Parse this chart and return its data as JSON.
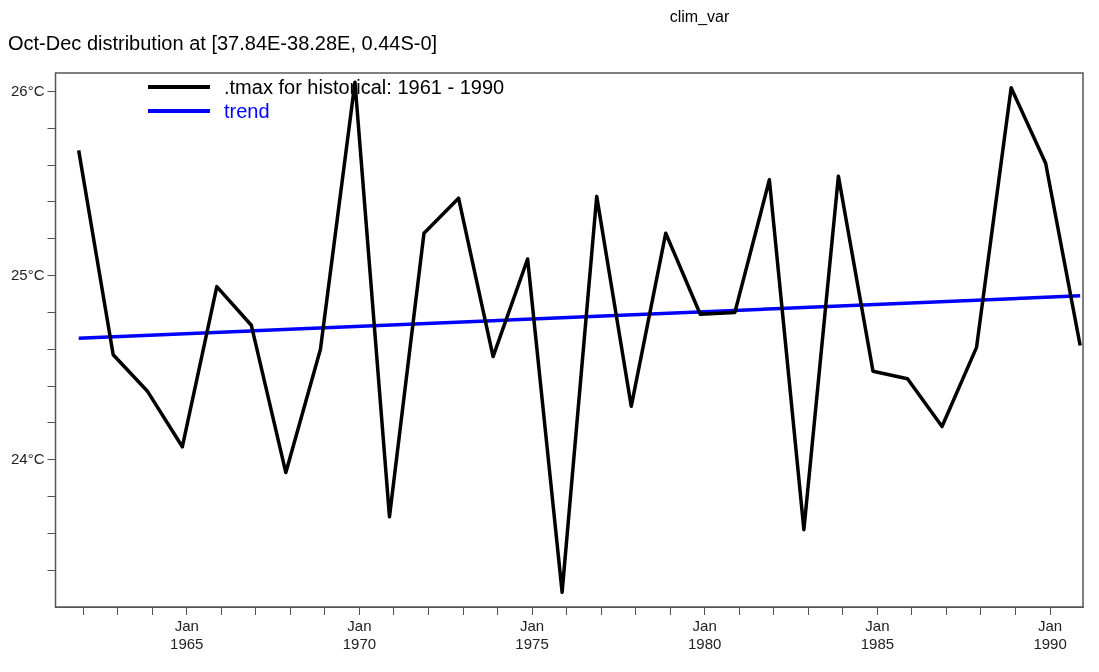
{
  "chart_data": {
    "type": "line",
    "title": "clim_var",
    "subtitle": "Oct-Dec distribution at [37.84E-38.28E, 0.44S-0]",
    "x": [
      "1961-11-15",
      "1962-11-15",
      "1963-11-15",
      "1964-11-15",
      "1965-11-15",
      "1966-11-15",
      "1967-11-15",
      "1968-11-15",
      "1969-11-15",
      "1970-11-15",
      "1971-11-15",
      "1972-11-15",
      "1973-11-15",
      "1974-11-15",
      "1975-11-15",
      "1976-11-15",
      "1977-11-15",
      "1978-11-15",
      "1979-11-15",
      "1980-11-15",
      "1981-11-15",
      "1982-11-15",
      "1983-11-15",
      "1984-11-15",
      "1985-11-15",
      "1986-11-15",
      "1987-11-15",
      "1988-11-15",
      "1989-11-15",
      "1990-11-15"
    ],
    "series": [
      {
        "name": ".tmax for historical: 1961 - 1990",
        "color": "#000000",
        "values": [
          25.68,
          24.57,
          24.37,
          24.07,
          24.94,
          24.73,
          23.93,
          24.6,
          26.05,
          23.69,
          25.23,
          25.42,
          24.56,
          25.09,
          23.28,
          25.43,
          24.29,
          25.23,
          24.79,
          24.8,
          25.52,
          23.62,
          25.54,
          24.48,
          24.44,
          24.18,
          24.61,
          26.02,
          25.61,
          24.62
        ]
      },
      {
        "name": "trend",
        "color": "#0000ff",
        "x": [
          "1961-11-15",
          "1990-11-15"
        ],
        "values": [
          24.66,
          24.89
        ]
      }
    ],
    "xlim": [
      "1961-03-15",
      "1990-12-15"
    ],
    "xticks": [
      {
        "value": "1962-01-01",
        "label": null
      },
      {
        "value": "1963-01-01",
        "label": null
      },
      {
        "value": "1964-01-01",
        "label": null
      },
      {
        "value": "1965-01-01",
        "label": "Jan 1965"
      },
      {
        "value": "1966-01-01",
        "label": null
      },
      {
        "value": "1967-01-01",
        "label": null
      },
      {
        "value": "1968-01-01",
        "label": null
      },
      {
        "value": "1969-01-01",
        "label": null
      },
      {
        "value": "1970-01-01",
        "label": "Jan 1970"
      },
      {
        "value": "1971-01-01",
        "label": null
      },
      {
        "value": "1972-01-01",
        "label": null
      },
      {
        "value": "1973-01-01",
        "label": null
      },
      {
        "value": "1974-01-01",
        "label": null
      },
      {
        "value": "1975-01-01",
        "label": "Jan 1975"
      },
      {
        "value": "1976-01-01",
        "label": null
      },
      {
        "value": "1977-01-01",
        "label": null
      },
      {
        "value": "1978-01-01",
        "label": null
      },
      {
        "value": "1979-01-01",
        "label": null
      },
      {
        "value": "1980-01-01",
        "label": "Jan 1980"
      },
      {
        "value": "1981-01-01",
        "label": null
      },
      {
        "value": "1982-01-01",
        "label": null
      },
      {
        "value": "1983-01-01",
        "label": null
      },
      {
        "value": "1984-01-01",
        "label": null
      },
      {
        "value": "1985-01-01",
        "label": "Jan 1985"
      },
      {
        "value": "1986-01-01",
        "label": null
      },
      {
        "value": "1987-01-01",
        "label": null
      },
      {
        "value": "1988-01-01",
        "label": null
      },
      {
        "value": "1989-01-01",
        "label": null
      },
      {
        "value": "1990-01-01",
        "label": "Jan 1990"
      }
    ],
    "ylim": [
      23.2,
      26.1
    ],
    "yticks": [
      {
        "value": 23.4,
        "label": null
      },
      {
        "value": 23.6,
        "label": null
      },
      {
        "value": 23.8,
        "label": null
      },
      {
        "value": 24,
        "label": "24°C"
      },
      {
        "value": 24.2,
        "label": null
      },
      {
        "value": 24.4,
        "label": null
      },
      {
        "value": 24.6,
        "label": null
      },
      {
        "value": 24.8,
        "label": null
      },
      {
        "value": 25,
        "label": "25°C"
      },
      {
        "value": 25.2,
        "label": null
      },
      {
        "value": 25.4,
        "label": null
      },
      {
        "value": 25.6,
        "label": null
      },
      {
        "value": 25.8,
        "label": null
      },
      {
        "value": 26,
        "label": "26°C"
      }
    ],
    "legend": "top left",
    "marker": "none",
    "line_style": "solid"
  }
}
